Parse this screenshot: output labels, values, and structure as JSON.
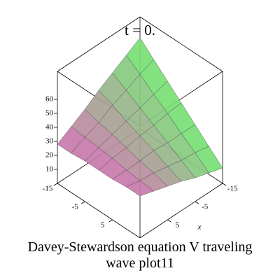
{
  "chart_data": {
    "type": "surface",
    "title": "t = 0.",
    "caption": "Davey-Stewardson equation V traveling wave plot11",
    "xlabel": "x",
    "xlim": [
      -15,
      15
    ],
    "ylim": [
      -15,
      15
    ],
    "zlim": [
      0,
      80
    ],
    "xticks": [
      -15,
      -5,
      5
    ],
    "yticks": [
      -15,
      -5,
      5
    ],
    "zticks": [
      10,
      20,
      30,
      40,
      50,
      60
    ],
    "x": [
      -15,
      -10,
      -5,
      0,
      5,
      10,
      15
    ],
    "y": [
      -15,
      -10,
      -5,
      0,
      5,
      10,
      15
    ],
    "z": [
      [
        65,
        59,
        53,
        47,
        40,
        34,
        28
      ],
      [
        56,
        52,
        47,
        43,
        37,
        33,
        28
      ],
      [
        47,
        44,
        41,
        38,
        35,
        32,
        29
      ],
      [
        38,
        37,
        35,
        34,
        32,
        31,
        29
      ],
      [
        29,
        29,
        29,
        30,
        29,
        29,
        29
      ],
      [
        20,
        22,
        23,
        25,
        27,
        28,
        30
      ],
      [
        11,
        14,
        17,
        21,
        24,
        27,
        30
      ]
    ],
    "colors": [
      "#d070b0",
      "#70e870"
    ]
  }
}
